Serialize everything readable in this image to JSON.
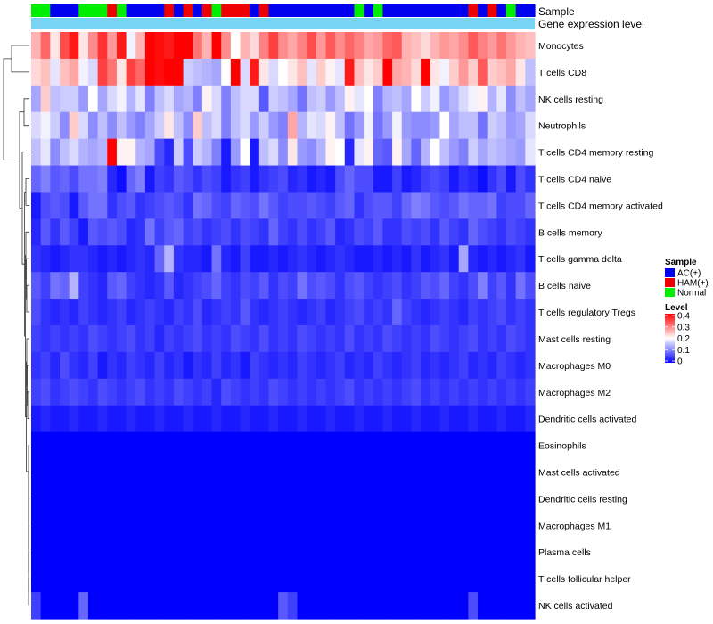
{
  "chart_data": {
    "type": "heatmap",
    "title": "",
    "annotations": {
      "sample_label": "Sample",
      "expression_label": "Gene expression level"
    },
    "rows": [
      "Monocytes",
      "T cells CD8",
      "NK cells resting",
      "Neutrophils",
      "T cells CD4 memory resting",
      "T cells CD4 naive",
      "T cells CD4 memory activated",
      "B cells memory",
      "T cells gamma delta",
      "B cells naive",
      "T cells regulatory  Tregs",
      "Mast cells resting",
      "Macrophages M0",
      "Macrophages M2",
      "Dendritic cells activated",
      "Eosinophils",
      "Mast cells activated",
      "Dendritic cells resting",
      "Macrophages M1",
      "Plasma cells",
      "T cells follicular helper",
      "NK cells activated"
    ],
    "sample_groups": [
      "N",
      "N",
      "A",
      "A",
      "A",
      "N",
      "N",
      "N",
      "H",
      "N",
      "A",
      "A",
      "A",
      "A",
      "H",
      "A",
      "H",
      "A",
      "H",
      "N",
      "H",
      "H",
      "H",
      "A",
      "H",
      "A",
      "A",
      "A",
      "A",
      "A",
      "A",
      "A",
      "A",
      "A",
      "N",
      "A",
      "N",
      "A",
      "A",
      "A",
      "A",
      "A",
      "A",
      "A",
      "A",
      "A",
      "H",
      "A",
      "H",
      "A",
      "N",
      "A",
      "A"
    ],
    "values": [
      [
        0.26,
        0.32,
        0.22,
        0.34,
        0.38,
        0.22,
        0.29,
        0.36,
        0.28,
        0.38,
        0.19,
        0.26,
        0.4,
        0.39,
        0.38,
        0.4,
        0.4,
        0.31,
        0.26,
        0.4,
        0.29,
        0.2,
        0.26,
        0.23,
        0.3,
        0.35,
        0.29,
        0.27,
        0.3,
        0.34,
        0.28,
        0.33,
        0.29,
        0.32,
        0.3,
        0.27,
        0.28,
        0.32,
        0.33,
        0.26,
        0.25,
        0.23,
        0.26,
        0.28,
        0.27,
        0.29,
        0.33,
        0.3,
        0.28,
        0.31,
        0.28,
        0.26,
        0.25
      ],
      [
        0.23,
        0.25,
        0.18,
        0.25,
        0.27,
        0.19,
        0.17,
        0.35,
        0.31,
        0.22,
        0.35,
        0.32,
        0.4,
        0.39,
        0.4,
        0.4,
        0.16,
        0.15,
        0.14,
        0.13,
        0.2,
        0.4,
        0.17,
        0.38,
        0.22,
        0.17,
        0.2,
        0.22,
        0.25,
        0.18,
        0.24,
        0.21,
        0.18,
        0.38,
        0.25,
        0.22,
        0.24,
        0.4,
        0.27,
        0.26,
        0.23,
        0.4,
        0.22,
        0.19,
        0.24,
        0.28,
        0.24,
        0.33,
        0.24,
        0.25,
        0.27,
        0.22,
        0.15
      ],
      [
        0.13,
        0.24,
        0.15,
        0.16,
        0.16,
        0.12,
        0.2,
        0.13,
        0.17,
        0.19,
        0.14,
        0.18,
        0.1,
        0.15,
        0.17,
        0.13,
        0.14,
        0.1,
        0.21,
        0.17,
        0.1,
        0.15,
        0.17,
        0.17,
        0.07,
        0.16,
        0.15,
        0.13,
        0.09,
        0.15,
        0.16,
        0.12,
        0.15,
        0.21,
        0.18,
        0.2,
        0.1,
        0.14,
        0.15,
        0.13,
        0.2,
        0.16,
        0.19,
        0.12,
        0.14,
        0.17,
        0.19,
        0.21,
        0.14,
        0.18,
        0.11,
        0.15,
        0.13
      ],
      [
        0.17,
        0.19,
        0.16,
        0.11,
        0.24,
        0.17,
        0.11,
        0.15,
        0.11,
        0.15,
        0.12,
        0.1,
        0.13,
        0.16,
        0.22,
        0.15,
        0.11,
        0.24,
        0.15,
        0.17,
        0.1,
        0.15,
        0.17,
        0.12,
        0.16,
        0.12,
        0.1,
        0.27,
        0.14,
        0.18,
        0.17,
        0.21,
        0.15,
        0.09,
        0.12,
        0.19,
        0.09,
        0.12,
        0.19,
        0.12,
        0.11,
        0.11,
        0.12,
        0.2,
        0.13,
        0.15,
        0.15,
        0.09,
        0.16,
        0.15,
        0.12,
        0.13,
        0.17
      ],
      [
        0.15,
        0.18,
        0.11,
        0.15,
        0.17,
        0.14,
        0.13,
        0.14,
        0.4,
        0.21,
        0.21,
        0.14,
        0.13,
        0.06,
        0.03,
        0.16,
        0.06,
        0.16,
        0.14,
        0.1,
        0.02,
        0.12,
        0.2,
        0.02,
        0.15,
        0.17,
        0.11,
        0.22,
        0.12,
        0.11,
        0.14,
        0.21,
        0.2,
        0.03,
        0.18,
        0.21,
        0.08,
        0.07,
        0.21,
        0.13,
        0.08,
        0.14,
        0.2,
        0.15,
        0.12,
        0.1,
        0.16,
        0.13,
        0.15,
        0.14,
        0.13,
        0.12,
        0.18
      ],
      [
        0.08,
        0.1,
        0.07,
        0.08,
        0.06,
        0.09,
        0.09,
        0.1,
        0.03,
        0.01,
        0.08,
        0.1,
        0.02,
        0.05,
        0.04,
        0.07,
        0.06,
        0.04,
        0.06,
        0.05,
        0.02,
        0.04,
        0.05,
        0.02,
        0.04,
        0.05,
        0.06,
        0.03,
        0.04,
        0.02,
        0.03,
        0.02,
        0.06,
        0.08,
        0.06,
        0.06,
        0.02,
        0.02,
        0.05,
        0.02,
        0.03,
        0.05,
        0.06,
        0.05,
        0.02,
        0.04,
        0.03,
        0.01,
        0.04,
        0.06,
        0.02,
        0.06,
        0.04
      ],
      [
        0.02,
        0.06,
        0.07,
        0.06,
        0.02,
        0.07,
        0.09,
        0.09,
        0.04,
        0.06,
        0.07,
        0.04,
        0.05,
        0.06,
        0.07,
        0.06,
        0.04,
        0.09,
        0.08,
        0.06,
        0.05,
        0.08,
        0.07,
        0.06,
        0.09,
        0.07,
        0.05,
        0.06,
        0.06,
        0.07,
        0.06,
        0.05,
        0.07,
        0.08,
        0.04,
        0.06,
        0.07,
        0.07,
        0.05,
        0.08,
        0.1,
        0.09,
        0.07,
        0.06,
        0.07,
        0.09,
        0.08,
        0.08,
        0.09,
        0.05,
        0.06,
        0.06,
        0.08
      ],
      [
        0.03,
        0.07,
        0.04,
        0.07,
        0.05,
        0.02,
        0.07,
        0.06,
        0.07,
        0.06,
        0.03,
        0.04,
        0.09,
        0.05,
        0.07,
        0.08,
        0.05,
        0.06,
        0.04,
        0.05,
        0.06,
        0.04,
        0.06,
        0.05,
        0.04,
        0.08,
        0.05,
        0.04,
        0.06,
        0.04,
        0.05,
        0.07,
        0.03,
        0.04,
        0.06,
        0.05,
        0.07,
        0.04,
        0.04,
        0.06,
        0.05,
        0.06,
        0.04,
        0.07,
        0.05,
        0.04,
        0.08,
        0.06,
        0.05,
        0.04,
        0.06,
        0.05,
        0.04
      ],
      [
        0.04,
        0.03,
        0.02,
        0.03,
        0.04,
        0.04,
        0.03,
        0.02,
        0.03,
        0.02,
        0.03,
        0.04,
        0.03,
        0.08,
        0.14,
        0.04,
        0.03,
        0.03,
        0.02,
        0.09,
        0.03,
        0.02,
        0.05,
        0.02,
        0.02,
        0.03,
        0.02,
        0.03,
        0.04,
        0.03,
        0.02,
        0.03,
        0.04,
        0.03,
        0.02,
        0.02,
        0.03,
        0.02,
        0.03,
        0.02,
        0.04,
        0.02,
        0.03,
        0.04,
        0.02,
        0.13,
        0.03,
        0.02,
        0.03,
        0.02,
        0.03,
        0.04,
        0.02
      ],
      [
        0.07,
        0.05,
        0.09,
        0.08,
        0.14,
        0.05,
        0.04,
        0.03,
        0.07,
        0.08,
        0.05,
        0.04,
        0.03,
        0.04,
        0.07,
        0.03,
        0.04,
        0.05,
        0.06,
        0.08,
        0.05,
        0.04,
        0.06,
        0.05,
        0.07,
        0.04,
        0.06,
        0.05,
        0.09,
        0.06,
        0.07,
        0.06,
        0.04,
        0.06,
        0.07,
        0.05,
        0.04,
        0.05,
        0.06,
        0.04,
        0.05,
        0.07,
        0.06,
        0.08,
        0.05,
        0.04,
        0.06,
        0.1,
        0.05,
        0.07,
        0.04,
        0.09,
        0.06
      ],
      [
        0.06,
        0.04,
        0.03,
        0.04,
        0.03,
        0.05,
        0.04,
        0.03,
        0.04,
        0.05,
        0.03,
        0.04,
        0.05,
        0.04,
        0.03,
        0.05,
        0.04,
        0.06,
        0.03,
        0.04,
        0.05,
        0.04,
        0.07,
        0.04,
        0.03,
        0.04,
        0.05,
        0.04,
        0.03,
        0.04,
        0.05,
        0.03,
        0.04,
        0.05,
        0.06,
        0.04,
        0.05,
        0.04,
        0.08,
        0.05,
        0.04,
        0.03,
        0.04,
        0.05,
        0.04,
        0.03,
        0.05,
        0.04,
        0.05,
        0.06,
        0.04,
        0.05,
        0.04
      ],
      [
        0.05,
        0.04,
        0.05,
        0.04,
        0.05,
        0.04,
        0.06,
        0.05,
        0.04,
        0.05,
        0.06,
        0.04,
        0.05,
        0.03,
        0.05,
        0.04,
        0.05,
        0.06,
        0.04,
        0.05,
        0.04,
        0.06,
        0.05,
        0.04,
        0.06,
        0.04,
        0.05,
        0.04,
        0.06,
        0.05,
        0.04,
        0.05,
        0.04,
        0.06,
        0.04,
        0.05,
        0.04,
        0.06,
        0.05,
        0.04,
        0.05,
        0.04,
        0.06,
        0.05,
        0.04,
        0.05,
        0.06,
        0.04,
        0.05,
        0.04,
        0.06,
        0.05,
        0.04
      ],
      [
        0.04,
        0.05,
        0.03,
        0.06,
        0.04,
        0.03,
        0.05,
        0.02,
        0.04,
        0.03,
        0.05,
        0.04,
        0.03,
        0.05,
        0.03,
        0.04,
        0.02,
        0.04,
        0.03,
        0.05,
        0.03,
        0.04,
        0.02,
        0.05,
        0.04,
        0.03,
        0.04,
        0.03,
        0.05,
        0.04,
        0.03,
        0.04,
        0.05,
        0.03,
        0.04,
        0.03,
        0.05,
        0.04,
        0.03,
        0.04,
        0.05,
        0.03,
        0.04,
        0.03,
        0.04,
        0.05,
        0.03,
        0.04,
        0.03,
        0.05,
        0.04,
        0.03,
        0.04
      ],
      [
        0.05,
        0.06,
        0.04,
        0.05,
        0.06,
        0.05,
        0.04,
        0.06,
        0.05,
        0.04,
        0.05,
        0.06,
        0.04,
        0.05,
        0.04,
        0.06,
        0.05,
        0.04,
        0.05,
        0.03,
        0.06,
        0.05,
        0.04,
        0.05,
        0.04,
        0.06,
        0.05,
        0.04,
        0.05,
        0.04,
        0.05,
        0.04,
        0.05,
        0.06,
        0.04,
        0.05,
        0.04,
        0.05,
        0.04,
        0.05,
        0.06,
        0.04,
        0.05,
        0.04,
        0.05,
        0.04,
        0.05,
        0.04,
        0.05,
        0.04,
        0.05,
        0.04,
        0.05
      ],
      [
        0.02,
        0.03,
        0.02,
        0.02,
        0.03,
        0.02,
        0.02,
        0.03,
        0.02,
        0.02,
        0.03,
        0.02,
        0.02,
        0.03,
        0.02,
        0.02,
        0.03,
        0.02,
        0.02,
        0.03,
        0.02,
        0.02,
        0.03,
        0.02,
        0.02,
        0.03,
        0.02,
        0.02,
        0.03,
        0.02,
        0.02,
        0.03,
        0.02,
        0.02,
        0.03,
        0.02,
        0.02,
        0.03,
        0.02,
        0.02,
        0.03,
        0.02,
        0.02,
        0.03,
        0.02,
        0.02,
        0.03,
        0.02,
        0.02,
        0.03,
        0.02,
        0.02,
        0.03
      ],
      [
        0.0,
        0.0,
        0.0,
        0.0,
        0.0,
        0.0,
        0.0,
        0.0,
        0.0,
        0.0,
        0.0,
        0.0,
        0.0,
        0.0,
        0.0,
        0.0,
        0.0,
        0.0,
        0.0,
        0.0,
        0.0,
        0.0,
        0.0,
        0.0,
        0.0,
        0.0,
        0.0,
        0.0,
        0.0,
        0.0,
        0.0,
        0.0,
        0.0,
        0.0,
        0.0,
        0.0,
        0.0,
        0.0,
        0.0,
        0.0,
        0.0,
        0.0,
        0.0,
        0.0,
        0.0,
        0.0,
        0.0,
        0.0,
        0.0,
        0.0,
        0.0,
        0.0,
        0.0
      ],
      [
        0.0,
        0.0,
        0.0,
        0.0,
        0.0,
        0.0,
        0.0,
        0.0,
        0.0,
        0.0,
        0.0,
        0.0,
        0.0,
        0.0,
        0.0,
        0.0,
        0.0,
        0.0,
        0.0,
        0.0,
        0.0,
        0.0,
        0.0,
        0.0,
        0.0,
        0.0,
        0.0,
        0.0,
        0.0,
        0.0,
        0.0,
        0.0,
        0.0,
        0.0,
        0.0,
        0.0,
        0.0,
        0.0,
        0.0,
        0.0,
        0.0,
        0.0,
        0.0,
        0.0,
        0.0,
        0.0,
        0.0,
        0.0,
        0.0,
        0.0,
        0.0,
        0.0,
        0.0
      ],
      [
        0.0,
        0.0,
        0.0,
        0.0,
        0.0,
        0.0,
        0.0,
        0.0,
        0.0,
        0.0,
        0.0,
        0.0,
        0.0,
        0.0,
        0.0,
        0.0,
        0.0,
        0.0,
        0.0,
        0.0,
        0.0,
        0.0,
        0.0,
        0.0,
        0.0,
        0.0,
        0.0,
        0.0,
        0.0,
        0.0,
        0.0,
        0.0,
        0.0,
        0.0,
        0.0,
        0.0,
        0.0,
        0.0,
        0.0,
        0.0,
        0.0,
        0.0,
        0.0,
        0.0,
        0.0,
        0.0,
        0.0,
        0.0,
        0.0,
        0.0,
        0.0,
        0.0,
        0.0
      ],
      [
        0.0,
        0.0,
        0.0,
        0.0,
        0.0,
        0.0,
        0.0,
        0.0,
        0.0,
        0.0,
        0.0,
        0.0,
        0.0,
        0.0,
        0.0,
        0.0,
        0.0,
        0.0,
        0.0,
        0.0,
        0.0,
        0.0,
        0.0,
        0.0,
        0.0,
        0.0,
        0.0,
        0.0,
        0.0,
        0.0,
        0.0,
        0.0,
        0.0,
        0.0,
        0.0,
        0.0,
        0.0,
        0.0,
        0.0,
        0.0,
        0.0,
        0.0,
        0.0,
        0.0,
        0.0,
        0.0,
        0.0,
        0.0,
        0.0,
        0.0,
        0.0,
        0.0,
        0.0
      ],
      [
        0.0,
        0.0,
        0.0,
        0.0,
        0.0,
        0.0,
        0.0,
        0.0,
        0.0,
        0.0,
        0.0,
        0.0,
        0.0,
        0.0,
        0.0,
        0.0,
        0.0,
        0.0,
        0.0,
        0.0,
        0.0,
        0.0,
        0.0,
        0.0,
        0.0,
        0.0,
        0.0,
        0.0,
        0.0,
        0.0,
        0.0,
        0.0,
        0.0,
        0.0,
        0.0,
        0.0,
        0.0,
        0.0,
        0.0,
        0.0,
        0.0,
        0.0,
        0.0,
        0.0,
        0.0,
        0.0,
        0.0,
        0.0,
        0.0,
        0.0,
        0.0,
        0.0,
        0.0
      ],
      [
        0.0,
        0.0,
        0.0,
        0.0,
        0.0,
        0.0,
        0.0,
        0.0,
        0.0,
        0.0,
        0.0,
        0.0,
        0.0,
        0.0,
        0.0,
        0.0,
        0.0,
        0.0,
        0.0,
        0.0,
        0.0,
        0.0,
        0.0,
        0.0,
        0.0,
        0.0,
        0.0,
        0.0,
        0.0,
        0.0,
        0.0,
        0.0,
        0.0,
        0.0,
        0.0,
        0.0,
        0.0,
        0.0,
        0.0,
        0.0,
        0.0,
        0.0,
        0.0,
        0.0,
        0.0,
        0.0,
        0.0,
        0.0,
        0.0,
        0.0,
        0.0,
        0.0,
        0.0
      ],
      [
        0.05,
        0.0,
        0.0,
        0.0,
        0.0,
        0.08,
        0.0,
        0.0,
        0.0,
        0.0,
        0.0,
        0.0,
        0.0,
        0.0,
        0.0,
        0.0,
        0.0,
        0.0,
        0.0,
        0.0,
        0.0,
        0.0,
        0.0,
        0.0,
        0.0,
        0.0,
        0.07,
        0.05,
        0.0,
        0.0,
        0.0,
        0.0,
        0.0,
        0.0,
        0.0,
        0.0,
        0.0,
        0.0,
        0.0,
        0.0,
        0.0,
        0.0,
        0.0,
        0.0,
        0.0,
        0.0,
        0.06,
        0.0,
        0.0,
        0.0,
        0.0,
        0.0,
        0.0
      ]
    ],
    "legend": {
      "sample": {
        "title": "Sample",
        "entries": [
          {
            "key": "A",
            "label": "AC(+)",
            "color": "#0000EE"
          },
          {
            "key": "H",
            "label": "HAM(+)",
            "color": "#EE0000"
          },
          {
            "key": "N",
            "label": "Normal",
            "color": "#00EE00"
          }
        ]
      },
      "level": {
        "title": "Level",
        "range": [
          0,
          0.4
        ],
        "ticks": [
          "0.4",
          "0.3",
          "0.2",
          "0.1",
          "0"
        ]
      }
    },
    "colors": {
      "low": "#0000FF",
      "mid": "#FFFFFF",
      "high": "#FF0000",
      "expression_bar": "#77D4F2",
      "expression_border": "#AAAAAA"
    }
  }
}
